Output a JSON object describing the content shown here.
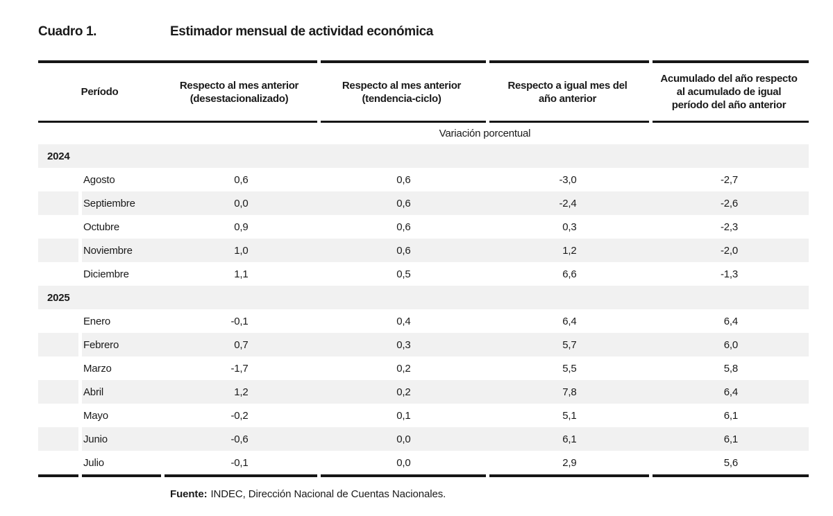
{
  "document": {
    "kicker": "Cuadro 1.",
    "title": "Estimador mensual de actividad económica"
  },
  "table": {
    "columns": [
      "Período",
      "Respecto al mes anterior\n(desestacionalizado)",
      "Respecto al mes anterior\n(tendencia-ciclo)",
      "Respecto a igual mes del\naño anterior",
      "Acumulado del año respecto\nal acumulado de igual\nperíodo del año anterior"
    ],
    "subheader": "Variación porcentual",
    "sections": [
      {
        "year": "2024",
        "rows": [
          {
            "period": "Agosto",
            "values": [
              "0,6",
              "0,6",
              "-3,0",
              "-2,7"
            ]
          },
          {
            "period": "Septiembre",
            "values": [
              "0,0",
              "0,6",
              "-2,4",
              "-2,6"
            ]
          },
          {
            "period": "Octubre",
            "values": [
              "0,9",
              "0,6",
              "0,3",
              "-2,3"
            ]
          },
          {
            "period": "Noviembre",
            "values": [
              "1,0",
              "0,6",
              "1,2",
              "-2,0"
            ]
          },
          {
            "period": "Diciembre",
            "values": [
              "1,1",
              "0,5",
              "6,6",
              "-1,3"
            ]
          }
        ]
      },
      {
        "year": "2025",
        "rows": [
          {
            "period": "Enero",
            "values": [
              "-0,1",
              "0,4",
              "6,4",
              "6,4"
            ]
          },
          {
            "period": "Febrero",
            "values": [
              "0,7",
              "0,3",
              "5,7",
              "6,0"
            ]
          },
          {
            "period": "Marzo",
            "values": [
              "-1,7",
              "0,2",
              "5,5",
              "5,8"
            ]
          },
          {
            "period": "Abril",
            "values": [
              "1,2",
              "0,2",
              "7,8",
              "6,4"
            ]
          },
          {
            "period": "Mayo",
            "values": [
              "-0,2",
              "0,1",
              "5,1",
              "6,1"
            ]
          },
          {
            "period": "Junio",
            "values": [
              "-0,6",
              "0,0",
              "6,1",
              "6,1"
            ]
          },
          {
            "period": "Julio",
            "values": [
              "-0,1",
              "0,0",
              "2,9",
              "5,6"
            ]
          }
        ]
      }
    ]
  },
  "footer": {
    "source_label": "Fuente:",
    "source_text": "INDEC, Dirección Nacional de Cuentas Nacionales."
  },
  "colors": {
    "text": "#1a1a1a",
    "rule": "#161616",
    "stripe": "#f1f1f1",
    "background": "#ffffff"
  }
}
